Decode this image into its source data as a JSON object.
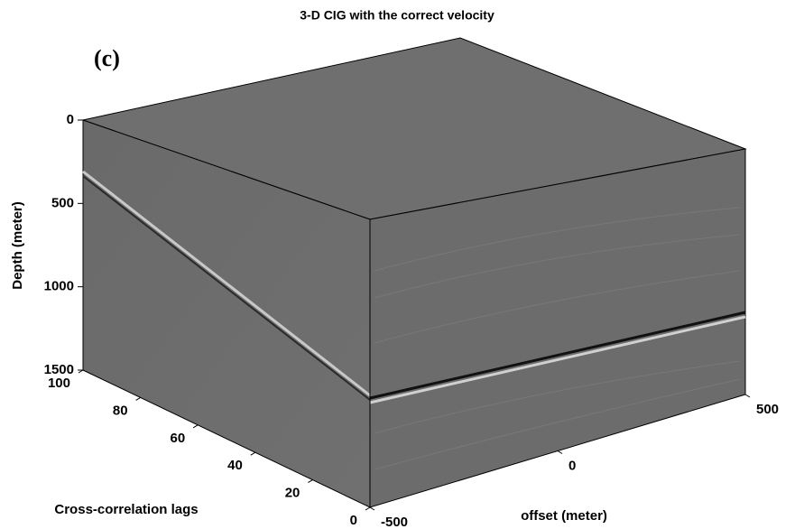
{
  "chart_data": {
    "type": "cube",
    "title": "3-D CIG with the correct velocity",
    "panel_label": "(c)",
    "zlabel": "Depth (meter)",
    "xlabel": "Cross-correlation lags",
    "ylabel": "offset (meter)",
    "zlim": [
      0,
      1500
    ],
    "zticks": [
      0,
      500,
      1000,
      1500
    ],
    "xlim": [
      0,
      100
    ],
    "xticks": [
      0,
      20,
      40,
      60,
      80,
      100
    ],
    "ylim": [
      -500,
      500
    ],
    "yticks": [
      -500,
      0,
      500
    ]
  }
}
